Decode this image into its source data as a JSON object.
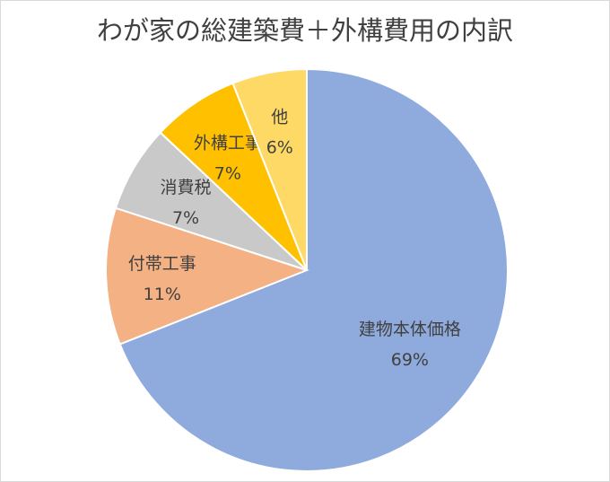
{
  "chart_data": {
    "type": "pie",
    "title": "わが家の総建築費＋外構費用の内訳",
    "slices": [
      {
        "label": "建物本体価格",
        "value": 69,
        "value_label": "69%",
        "color": "#8faadc"
      },
      {
        "label": "付帯工事",
        "value": 11,
        "value_label": "11%",
        "color": "#f4b183"
      },
      {
        "label": "消費税",
        "value": 7,
        "value_label": "7%",
        "color": "#c9c9c9"
      },
      {
        "label": "外構工事",
        "value": 7,
        "value_label": "7%",
        "color": "#ffc000"
      },
      {
        "label": "他",
        "value": 6,
        "value_label": "6%",
        "color": "#ffd966"
      }
    ],
    "start_angle_deg": 0,
    "direction": "clockwise",
    "legend": "none"
  }
}
